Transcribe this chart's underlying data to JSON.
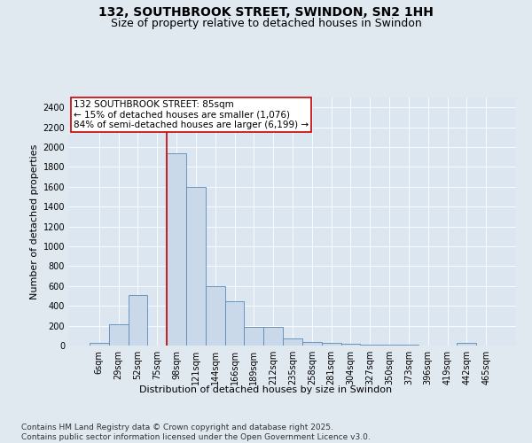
{
  "title": "132, SOUTHBROOK STREET, SWINDON, SN2 1HH",
  "subtitle": "Size of property relative to detached houses in Swindon",
  "xlabel": "Distribution of detached houses by size in Swindon",
  "ylabel": "Number of detached properties",
  "categories": [
    "6sqm",
    "29sqm",
    "52sqm",
    "75sqm",
    "98sqm",
    "121sqm",
    "144sqm",
    "166sqm",
    "189sqm",
    "212sqm",
    "235sqm",
    "258sqm",
    "281sqm",
    "304sqm",
    "327sqm",
    "350sqm",
    "373sqm",
    "396sqm",
    "419sqm",
    "442sqm",
    "465sqm"
  ],
  "values": [
    30,
    210,
    510,
    0,
    1940,
    1600,
    600,
    450,
    190,
    185,
    75,
    40,
    30,
    17,
    12,
    10,
    5,
    0,
    0,
    30,
    0
  ],
  "bar_color": "#c9d9ea",
  "bar_edge_color": "#5a8ab5",
  "vline_x_index": 4,
  "vline_color": "#cc0000",
  "annotation_text": "132 SOUTHBROOK STREET: 85sqm\n← 15% of detached houses are smaller (1,076)\n84% of semi-detached houses are larger (6,199) →",
  "annotation_box_facecolor": "#ffffff",
  "annotation_box_edgecolor": "#cc0000",
  "ylim": [
    0,
    2500
  ],
  "yticks": [
    0,
    200,
    400,
    600,
    800,
    1000,
    1200,
    1400,
    1600,
    1800,
    2000,
    2200,
    2400
  ],
  "bg_color": "#e0e8f0",
  "plot_bg_color": "#dce6f0",
  "grid_color": "#ffffff",
  "footer": "Contains HM Land Registry data © Crown copyright and database right 2025.\nContains public sector information licensed under the Open Government Licence v3.0.",
  "title_fontsize": 10,
  "subtitle_fontsize": 9,
  "axis_label_fontsize": 8,
  "tick_fontsize": 7,
  "annotation_fontsize": 7.5,
  "footer_fontsize": 6.5
}
